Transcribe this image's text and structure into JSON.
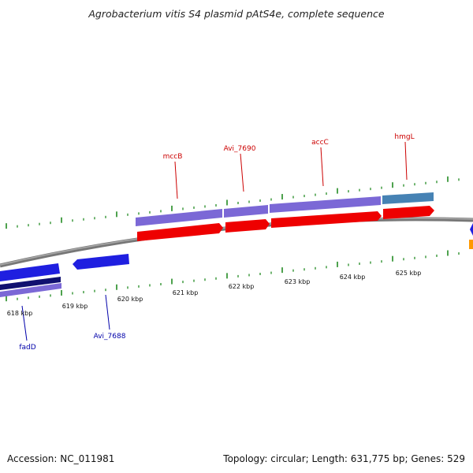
{
  "title": "Agrobacterium vitis S4 plasmid pAtS4e, complete sequence",
  "footer": {
    "accession": "Accession: NC_011981",
    "summary": "Topology: circular; Length: 631,775 bp; Genes: 529"
  },
  "colors": {
    "backbone": "#8a8a8a",
    "tick": "#228b22",
    "gene_purple": "#7b68d6",
    "gene_teal": "#4682b4",
    "cds_red": "#ee0000",
    "cds_blue": "#1f1fe0",
    "cds_navy": "#101070",
    "cds_orange": "#ff9900",
    "label_up": "#cc0000",
    "label_down": "#0000aa"
  },
  "kbp_labels": [
    "618 kbp",
    "619 kbp",
    "620 kbp",
    "621 kbp",
    "622 kbp",
    "623 kbp",
    "624 kbp",
    "625 kbp"
  ],
  "gene_labels_upper": [
    "mccB",
    "Avi_7690",
    "accC",
    "hmgL"
  ],
  "gene_labels_lower": [
    "fadD",
    "Avi_7688"
  ]
}
